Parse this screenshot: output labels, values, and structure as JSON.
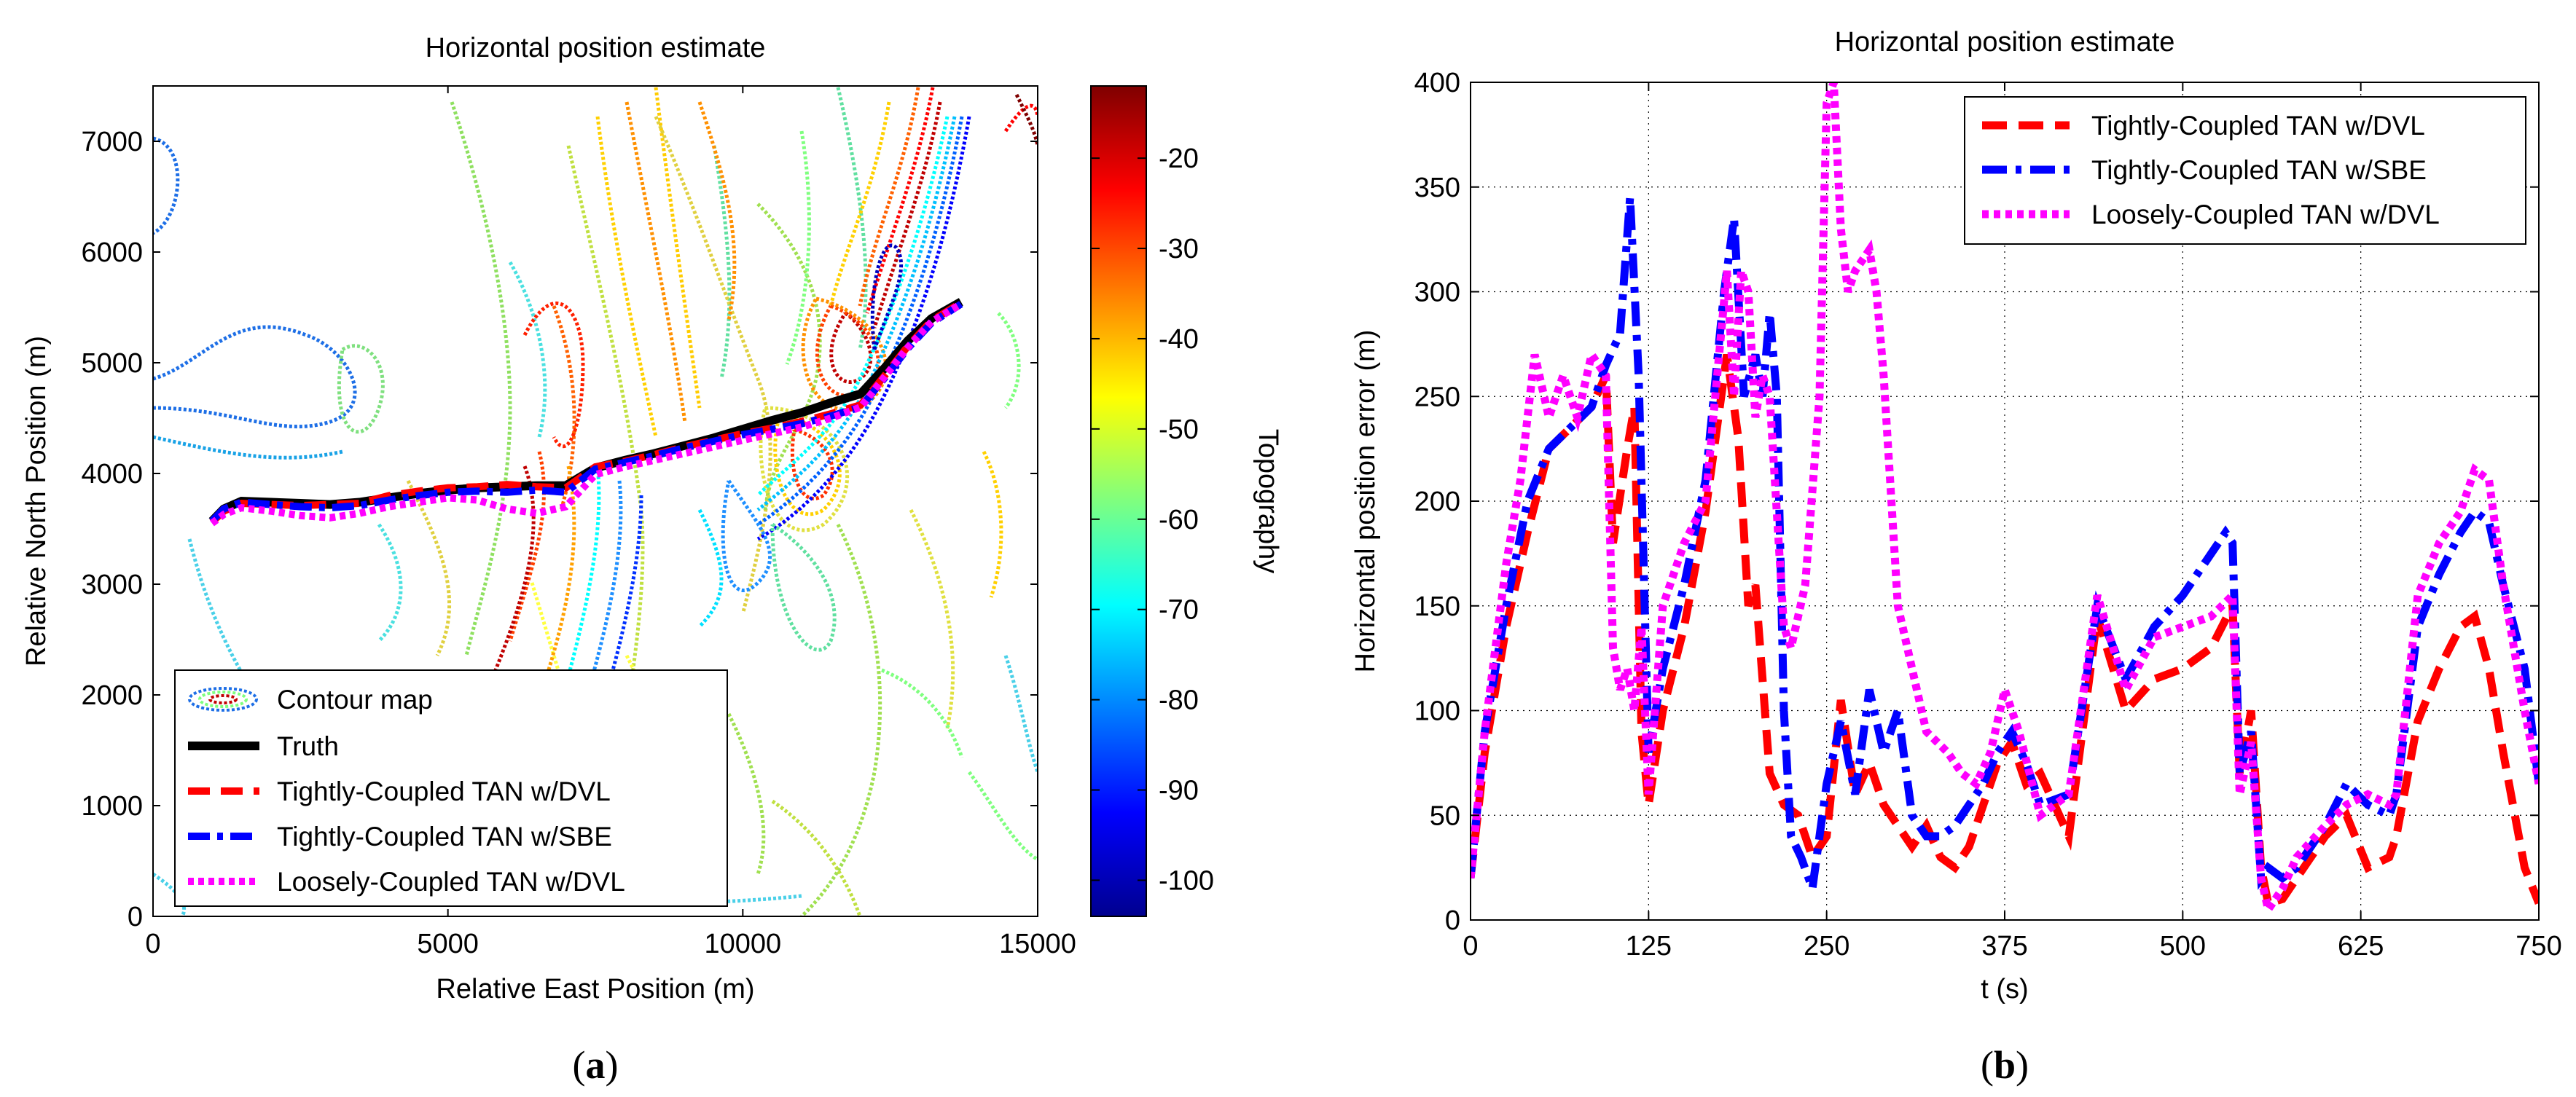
{
  "chart_data": [
    {
      "id": "a",
      "type": "contour",
      "panel_label_open": "(",
      "panel_label_letter": "a",
      "panel_label_close": ")",
      "title": "Horizontal position estimate",
      "xlabel": "Relative East Position (m)",
      "ylabel": "Relative North Position (m)",
      "xlim": [
        0,
        15000
      ],
      "ylim": [
        0,
        7500
      ],
      "xticks": [
        0,
        5000,
        10000,
        15000
      ],
      "yticks": [
        0,
        1000,
        2000,
        3000,
        4000,
        5000,
        6000,
        7000
      ],
      "colorbar": {
        "label": "Topography",
        "range": [
          -104,
          -12
        ],
        "ticks": [
          -20,
          -30,
          -40,
          -50,
          -60,
          -70,
          -80,
          -90,
          -100
        ]
      },
      "legend": [
        "Contour map",
        "Truth",
        "Tightly-Coupled TAN w/DVL",
        "Tightly-Coupled TAN w/SBE",
        "Loosely-Coupled TAN w/DVL"
      ],
      "legend_position": "bottom-left",
      "series": [
        {
          "name": "Truth",
          "color": "#000000",
          "x": [
            1000,
            1200,
            1500,
            2000,
            2500,
            3000,
            3500,
            4000,
            4500,
            5000,
            5500,
            6000,
            6500,
            7000,
            7500,
            8000,
            8500,
            9000,
            9500,
            10000,
            10500,
            11000,
            11500,
            12000,
            12400,
            12800,
            13200,
            13700
          ],
          "y": [
            3570,
            3680,
            3750,
            3740,
            3730,
            3720,
            3740,
            3780,
            3820,
            3850,
            3870,
            3880,
            3890,
            3890,
            4050,
            4120,
            4180,
            4250,
            4320,
            4400,
            4480,
            4550,
            4640,
            4720,
            4950,
            5200,
            5400,
            5550
          ]
        },
        {
          "name": "Tightly-Coupled TAN w/DVL",
          "color": "#ff0000",
          "x": [
            1000,
            1200,
            1500,
            2000,
            2500,
            3000,
            3500,
            4000,
            4500,
            5000,
            5500,
            6000,
            6500,
            7000,
            7500,
            8000,
            8500,
            9000,
            9500,
            10000,
            10500,
            11000,
            11500,
            12000,
            12400,
            12800,
            13200,
            13700
          ],
          "y": [
            3560,
            3660,
            3730,
            3720,
            3710,
            3720,
            3730,
            3800,
            3840,
            3870,
            3880,
            3900,
            3880,
            3870,
            4060,
            4110,
            4170,
            4240,
            4300,
            4360,
            4410,
            4470,
            4540,
            4620,
            4880,
            5150,
            5380,
            5540
          ]
        },
        {
          "name": "Tightly-Coupled TAN w/SBE",
          "color": "#0000ff",
          "x": [
            1000,
            1200,
            1500,
            2000,
            2500,
            3000,
            3500,
            4000,
            4500,
            5000,
            5500,
            6000,
            6500,
            7000,
            7500,
            8000,
            8500,
            9000,
            9500,
            10000,
            10500,
            11000,
            11500,
            12000,
            12400,
            12800,
            13200,
            13700
          ],
          "y": [
            3570,
            3680,
            3740,
            3720,
            3700,
            3690,
            3710,
            3760,
            3800,
            3830,
            3840,
            3830,
            3850,
            3830,
            4040,
            4100,
            4160,
            4230,
            4290,
            4350,
            4400,
            4450,
            4520,
            4600,
            4860,
            5130,
            5360,
            5530
          ]
        },
        {
          "name": "Loosely-Coupled TAN w/DVL",
          "color": "#ff00ff",
          "x": [
            1000,
            1200,
            1500,
            2000,
            2500,
            3000,
            3500,
            4000,
            4500,
            5000,
            5500,
            6000,
            6500,
            7000,
            7500,
            8000,
            8500,
            9000,
            9500,
            10000,
            10500,
            11000,
            11500,
            12000,
            12400,
            12800,
            13200,
            13700
          ],
          "y": [
            3550,
            3630,
            3690,
            3660,
            3620,
            3600,
            3640,
            3700,
            3740,
            3780,
            3760,
            3680,
            3640,
            3700,
            3990,
            4060,
            4120,
            4180,
            4240,
            4300,
            4360,
            4420,
            4500,
            4600,
            4870,
            5140,
            5370,
            5530
          ]
        }
      ]
    },
    {
      "id": "b",
      "type": "line",
      "panel_label_open": "(",
      "panel_label_letter": "b",
      "panel_label_close": ")",
      "title": "Horizontal position estimate",
      "xlabel": "t (s)",
      "ylabel": "Horizontal position error (m)",
      "xlim": [
        0,
        750
      ],
      "ylim": [
        0,
        400
      ],
      "xticks": [
        0,
        125,
        250,
        375,
        500,
        625,
        750
      ],
      "yticks": [
        0,
        50,
        100,
        150,
        200,
        250,
        300,
        350,
        400
      ],
      "grid": true,
      "legend_position": "top-right",
      "series": [
        {
          "name": "Tightly-Coupled TAN w/DVL",
          "color": "#ff0000",
          "x": [
            0,
            10,
            25,
            40,
            55,
            70,
            85,
            95,
            100,
            110,
            115,
            120,
            125,
            135,
            150,
            165,
            180,
            188,
            195,
            200,
            210,
            220,
            230,
            240,
            250,
            260,
            270,
            280,
            290,
            300,
            310,
            320,
            330,
            340,
            350,
            360,
            370,
            380,
            390,
            400,
            420,
            440,
            460,
            480,
            500,
            520,
            535,
            540,
            548,
            555,
            560,
            570,
            580,
            600,
            615,
            630,
            645,
            650,
            665,
            680,
            695,
            705,
            715,
            725,
            740,
            750
          ],
          "y": [
            20,
            80,
            140,
            185,
            225,
            235,
            245,
            260,
            180,
            225,
            245,
            90,
            55,
            100,
            140,
            195,
            270,
            230,
            150,
            160,
            70,
            55,
            50,
            30,
            40,
            105,
            60,
            75,
            55,
            45,
            35,
            45,
            30,
            25,
            35,
            55,
            75,
            85,
            65,
            70,
            40,
            145,
            100,
            115,
            120,
            130,
            150,
            70,
            100,
            25,
            8,
            10,
            20,
            40,
            50,
            25,
            30,
            40,
            95,
            120,
            140,
            145,
            120,
            80,
            25,
            8
          ]
        },
        {
          "name": "Tightly-Coupled TAN w/SBE",
          "color": "#0000ff",
          "x": [
            0,
            10,
            25,
            40,
            55,
            70,
            85,
            95,
            105,
            112,
            118,
            125,
            135,
            150,
            165,
            178,
            185,
            192,
            200,
            205,
            210,
            215,
            220,
            225,
            232,
            240,
            250,
            260,
            270,
            280,
            290,
            300,
            310,
            320,
            330,
            340,
            350,
            360,
            370,
            380,
            390,
            400,
            420,
            440,
            460,
            480,
            500,
            520,
            530,
            535,
            540,
            548,
            555,
            560,
            570,
            580,
            600,
            615,
            630,
            645,
            650,
            665,
            680,
            695,
            705,
            715,
            725,
            740,
            750
          ],
          "y": [
            20,
            90,
            150,
            200,
            225,
            235,
            245,
            265,
            280,
            345,
            260,
            80,
            120,
            160,
            210,
            300,
            335,
            250,
            270,
            250,
            290,
            250,
            100,
            40,
            30,
            15,
            65,
            95,
            60,
            110,
            80,
            100,
            50,
            40,
            40,
            45,
            55,
            65,
            80,
            90,
            75,
            55,
            60,
            150,
            115,
            140,
            155,
            175,
            185,
            180,
            70,
            90,
            20,
            25,
            20,
            25,
            45,
            65,
            55,
            50,
            60,
            140,
            165,
            185,
            195,
            190,
            160,
            120,
            65
          ]
        },
        {
          "name": "Loosely-Coupled TAN w/DVL",
          "color": "#ff00ff",
          "x": [
            0,
            10,
            25,
            35,
            45,
            55,
            65,
            75,
            85,
            95,
            100,
            105,
            110,
            115,
            120,
            125,
            135,
            150,
            165,
            180,
            185,
            190,
            195,
            200,
            205,
            210,
            220,
            225,
            235,
            245,
            250,
            255,
            260,
            265,
            270,
            280,
            285,
            290,
            300,
            310,
            320,
            335,
            345,
            355,
            365,
            375,
            385,
            400,
            420,
            440,
            460,
            480,
            500,
            520,
            535,
            540,
            548,
            555,
            560,
            570,
            580,
            600,
            615,
            630,
            645,
            650,
            665,
            680,
            695,
            705,
            715,
            725,
            740,
            750
          ],
          "y": [
            20,
            90,
            170,
            210,
            270,
            240,
            260,
            240,
            270,
            260,
            130,
            110,
            120,
            100,
            140,
            60,
            150,
            180,
            200,
            310,
            250,
            310,
            300,
            240,
            260,
            250,
            140,
            130,
            160,
            250,
            390,
            400,
            330,
            300,
            310,
            320,
            300,
            260,
            150,
            120,
            90,
            80,
            70,
            65,
            80,
            110,
            90,
            50,
            60,
            155,
            110,
            135,
            140,
            145,
            155,
            60,
            85,
            20,
            5,
            15,
            30,
            45,
            55,
            60,
            55,
            60,
            155,
            180,
            195,
            215,
            210,
            160,
            100,
            65
          ]
        }
      ]
    }
  ]
}
